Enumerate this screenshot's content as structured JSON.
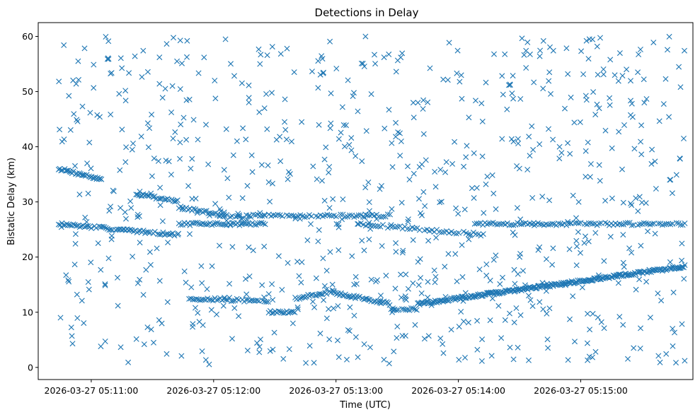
{
  "chart_data": {
    "type": "scatter",
    "title": "Detections in Delay",
    "xlabel": "Time (UTC)",
    "ylabel": "Bistatic Delay (km)",
    "marker": "x",
    "color": "#1f77b4",
    "grid": false,
    "legend": "none",
    "x_ticks": [
      "2026-03-27 05:11:00",
      "2026-03-27 05:12:00",
      "2026-03-27 05:13:00",
      "2026-03-27 05:14:00",
      "2026-03-27 05:15:00"
    ],
    "y_ticks": [
      "0",
      "10",
      "20",
      "30",
      "40",
      "50",
      "60"
    ],
    "xlim": [
      "2026-03-27 05:10:34",
      "2026-03-27 05:15:55"
    ],
    "ylim": [
      -2.2,
      62.5
    ],
    "tracks": [
      {
        "t_start": "2026-03-27 05:10:44",
        "t_end": "2026-03-27 05:11:06",
        "delay_start": 36,
        "delay_end": 34,
        "step_s": 0.6
      },
      {
        "t_start": "2026-03-27 05:10:44",
        "t_end": "2026-03-27 05:11:43",
        "delay_start": 26,
        "delay_end": 24,
        "step_s": 0.8
      },
      {
        "t_start": "2026-03-27 05:11:43",
        "t_end": "2026-03-27 05:12:27",
        "delay_start": 26,
        "delay_end": 26,
        "step_s": 0.9
      },
      {
        "t_start": "2026-03-27 05:11:22",
        "t_end": "2026-03-27 05:11:43",
        "delay_start": 31.5,
        "delay_end": 30,
        "step_s": 0.7
      },
      {
        "t_start": "2026-03-27 05:11:43",
        "t_end": "2026-03-27 05:12:15",
        "delay_start": 29,
        "delay_end": 27,
        "step_s": 0.9
      },
      {
        "t_start": "2026-03-27 05:12:15",
        "t_end": "2026-03-27 05:13:27",
        "delay_start": 27.5,
        "delay_end": 27.5,
        "step_s": 1.1
      },
      {
        "t_start": "2026-03-27 05:13:11",
        "t_end": "2026-03-27 05:14:14",
        "delay_start": 26,
        "delay_end": 24,
        "step_s": 1.2
      },
      {
        "t_start": "2026-03-27 05:14:08",
        "t_end": "2026-03-27 05:15:51",
        "delay_start": 26,
        "delay_end": 26,
        "step_s": 1.0
      },
      {
        "t_start": "2026-03-27 05:11:48",
        "t_end": "2026-03-27 05:12:27",
        "delay_start": 12.5,
        "delay_end": 12,
        "step_s": 0.9
      },
      {
        "t_start": "2026-03-27 05:12:27",
        "t_end": "2026-03-27 05:12:40",
        "delay_start": 10,
        "delay_end": 10,
        "step_s": 0.8
      },
      {
        "t_start": "2026-03-27 05:12:40",
        "t_end": "2026-03-27 05:12:59",
        "delay_start": 12.5,
        "delay_end": 13.8,
        "step_s": 0.7
      },
      {
        "t_start": "2026-03-27 05:12:59",
        "t_end": "2026-03-27 05:13:27",
        "delay_start": 13.5,
        "delay_end": 11.5,
        "step_s": 0.7
      },
      {
        "t_start": "2026-03-27 05:13:27",
        "t_end": "2026-03-27 05:13:40",
        "delay_start": 10.5,
        "delay_end": 10.5,
        "step_s": 0.9
      },
      {
        "t_start": "2026-03-27 05:13:40",
        "t_end": "2026-03-27 05:15:51",
        "delay_start": 11.5,
        "delay_end": 18.3,
        "step_s": 0.5
      }
    ],
    "clutter_seed": 7,
    "clutter_count": 820
  }
}
